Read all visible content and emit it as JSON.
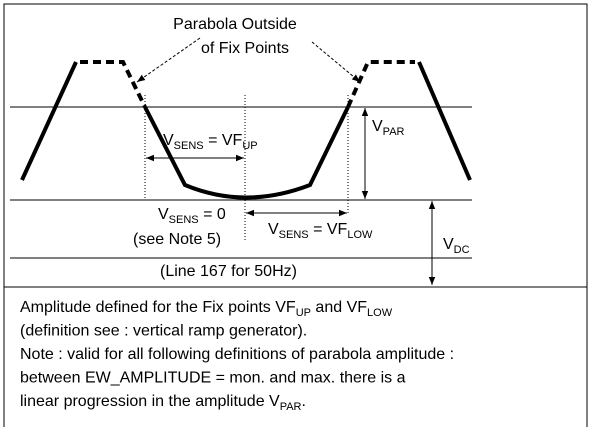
{
  "diagram": {
    "callout": [
      "Parabola Outside",
      "of Fix Points"
    ],
    "vsens_up": [
      "V",
      "SENS",
      " = VF",
      "UP"
    ],
    "vpar": [
      "V",
      "PAR"
    ],
    "vsens_zero": [
      "V",
      "SENS",
      " = 0"
    ],
    "note": [
      "(see Note 5)"
    ],
    "vsens_low": [
      "V",
      "SENS",
      " = VF",
      "LOW"
    ],
    "vdc": [
      "V",
      "DC"
    ],
    "line": [
      "(Line 167 for 50Hz)"
    ]
  },
  "caption": [
    [
      "Amplitude defined for the Fix points VF",
      "UP",
      " and VF",
      "LOW"
    ],
    [
      "(definition see : vertical ramp generator)."
    ],
    [
      "Note : valid for all following definitions of parabola amplitude :"
    ],
    [
      "between EW_AMPLITUDE = mon. and max. there is a"
    ],
    [
      "linear progression in the amplitude V",
      "PAR",
      "."
    ]
  ]
}
